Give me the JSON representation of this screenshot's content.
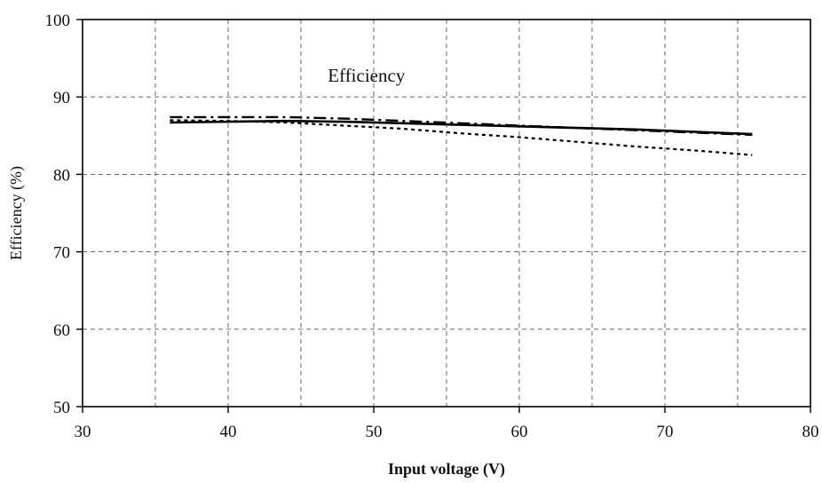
{
  "chart_data": {
    "type": "line",
    "title": "",
    "annotation": "Efficiency",
    "xlabel": "Input voltage (V)",
    "ylabel": "Efficiency (%)",
    "xlim": [
      30,
      80
    ],
    "ylim": [
      50,
      100
    ],
    "xticks": [
      30,
      40,
      50,
      60,
      70,
      80
    ],
    "yticks": [
      50,
      60,
      70,
      80,
      90,
      100
    ],
    "grid": true,
    "series": [
      {
        "style": "solid",
        "color": "#000000",
        "x": [
          36,
          40,
          44,
          48,
          52,
          56,
          60,
          64,
          68,
          72,
          76
        ],
        "y": [
          86.7,
          86.8,
          86.9,
          86.8,
          86.6,
          86.4,
          86.2,
          86.0,
          85.8,
          85.5,
          85.2
        ]
      },
      {
        "style": "dashdot",
        "color": "#000000",
        "x": [
          36,
          40,
          44,
          48,
          52,
          56,
          60,
          64,
          68,
          72,
          76
        ],
        "y": [
          87.4,
          87.4,
          87.4,
          87.2,
          86.9,
          86.6,
          86.3,
          86.0,
          85.7,
          85.4,
          85.1
        ]
      },
      {
        "style": "dotted",
        "color": "#000000",
        "x": [
          36,
          40,
          44,
          48,
          52,
          56,
          60,
          64,
          68,
          72,
          76
        ],
        "y": [
          87.0,
          86.9,
          86.7,
          86.3,
          85.9,
          85.3,
          84.8,
          84.2,
          83.6,
          83.1,
          82.5
        ]
      }
    ]
  }
}
